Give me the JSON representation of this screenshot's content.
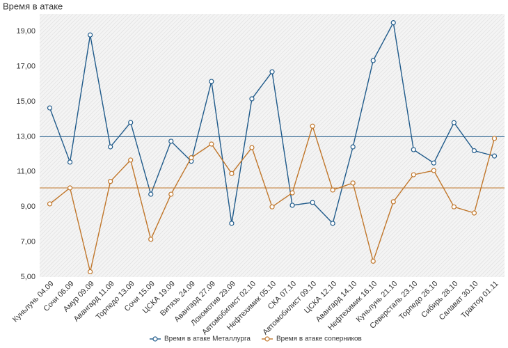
{
  "chart_data": {
    "type": "line",
    "title": "Время в атаке",
    "categories": [
      "Куньлунь 04.09",
      "Сочи 06.09",
      "Амур 09.09",
      "Авангард 11.09",
      "Торпедо 13.09",
      "Сочи 15.09",
      "ЦСКА 19.09",
      "Витязь 24.09",
      "Авангард 27.09",
      "Локомотив 29.09",
      "Автомобилист 02.10",
      "Нефтехимик 05.10",
      "СКА 07.10",
      "Автомобилист 09.10",
      "ЦСКА 12.10",
      "Авангард 14.10",
      "Нефтехимик 16.10",
      "Куньлунь 21.10",
      "Северсталь 23.10",
      "Торпедо 26.10",
      "Сибирь 28.10",
      "Салават 30.10",
      "Трактор 01.11"
    ],
    "series": [
      {
        "name": "Время в атаке Металлурга",
        "color": "#1f5a8a",
        "mean": 13.0,
        "values": [
          14.64,
          11.55,
          18.8,
          12.42,
          13.81,
          9.72,
          12.74,
          11.6,
          16.15,
          8.06,
          15.16,
          16.7,
          9.09,
          9.25,
          8.06,
          12.42,
          17.34,
          19.5,
          12.26,
          11.5,
          13.8,
          12.2,
          11.9
        ]
      },
      {
        "name": "Время в атаке соперников",
        "color": "#c0762a",
        "mean": 10.08,
        "values": [
          9.17,
          10.08,
          5.3,
          10.45,
          11.67,
          7.15,
          9.72,
          11.8,
          12.58,
          10.9,
          12.38,
          9.0,
          9.8,
          13.6,
          9.96,
          10.36,
          5.9,
          9.29,
          10.83,
          11.07,
          9.0,
          8.65,
          12.9
        ]
      }
    ],
    "ylim": [
      5,
      20
    ],
    "yticks": [
      {
        "value": 5,
        "label": "5,00"
      },
      {
        "value": 7,
        "label": "7,00"
      },
      {
        "value": 9,
        "label": "9,00"
      },
      {
        "value": 11,
        "label": "11,00"
      },
      {
        "value": 13,
        "label": "13,00"
      },
      {
        "value": 15,
        "label": "15,00"
      },
      {
        "value": 17,
        "label": "17,00"
      },
      {
        "value": 19,
        "label": "19,00"
      }
    ],
    "grid": false,
    "legend": "bottom"
  }
}
